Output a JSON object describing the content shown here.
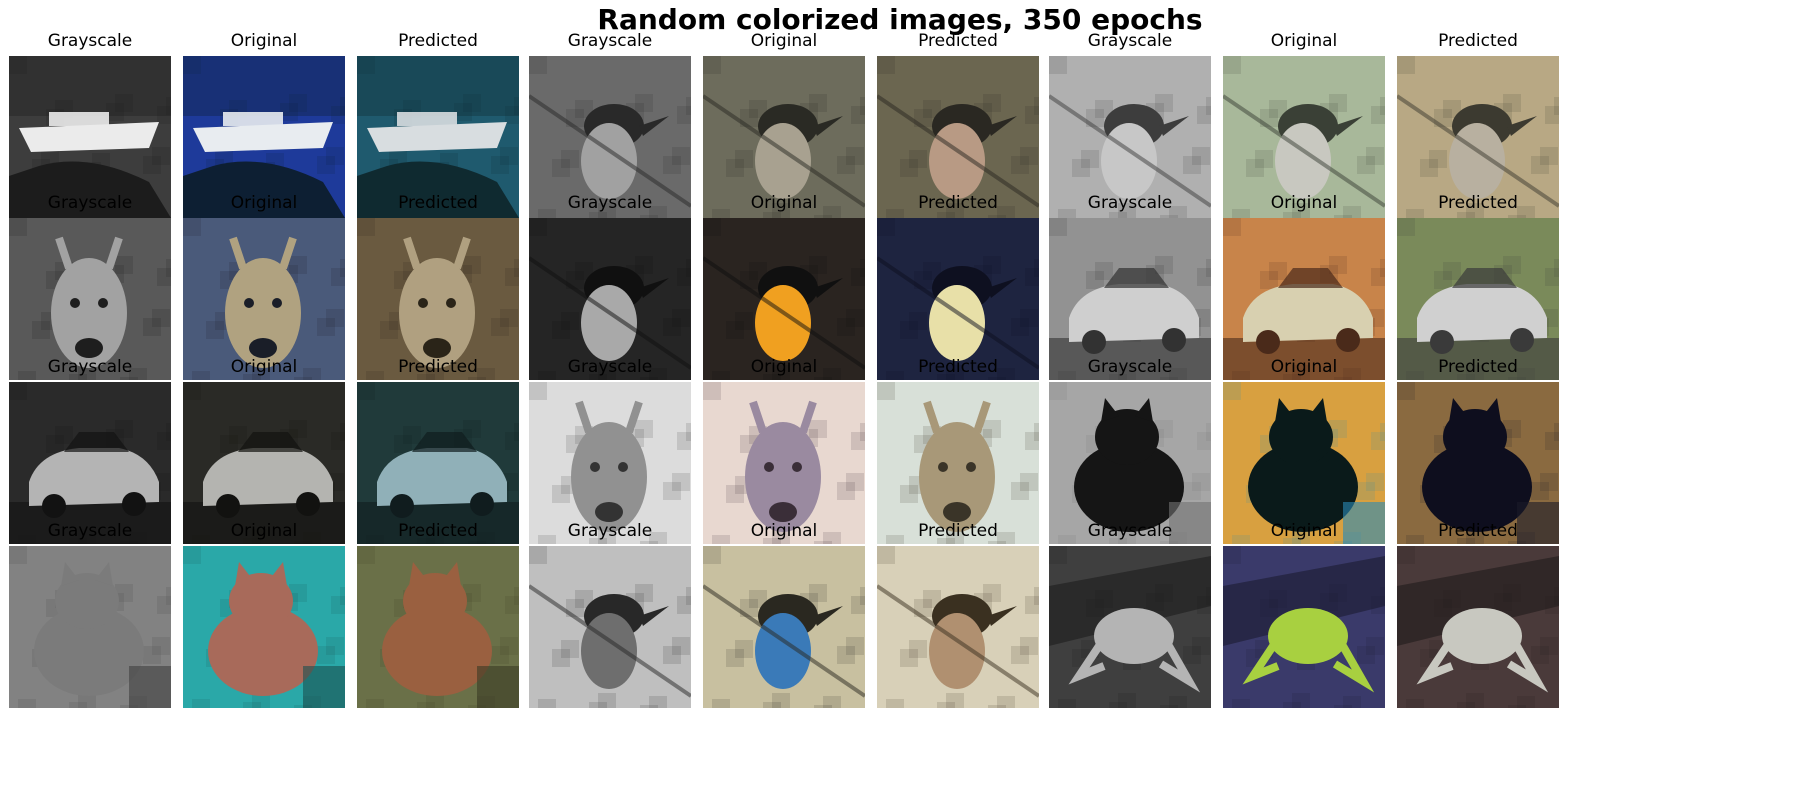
{
  "figure": {
    "title": "Random colorized images, 350 epochs"
  },
  "panel_labels": {
    "grayscale": "Grayscale",
    "original": "Original",
    "predicted": "Predicted"
  },
  "grid": {
    "rows": [
      {
        "samples": [
          {
            "subject": "boat",
            "original_colors": {
              "bg": "#1e3a9a",
              "main": "#e8ecf0",
              "dark": "#0d1f33"
            },
            "predicted_colors": {
              "bg": "#1f5a6e",
              "main": "#d8dde0",
              "dark": "#0f2a30"
            }
          },
          {
            "subject": "bird",
            "original_colors": {
              "bg": "#6d6c5c",
              "main": "#a8a190",
              "dark": "#2a2a24"
            },
            "predicted_colors": {
              "bg": "#6b6650",
              "main": "#b89a84",
              "dark": "#2a2822"
            }
          },
          {
            "subject": "bird",
            "original_colors": {
              "bg": "#a8b89a",
              "main": "#c8c8c0",
              "dark": "#3a4036"
            },
            "predicted_colors": {
              "bg": "#b8a884",
              "main": "#b8b0a0",
              "dark": "#3c3a30"
            }
          }
        ]
      },
      {
        "samples": [
          {
            "subject": "deer",
            "original_colors": {
              "bg": "#4a5a7a",
              "main": "#b0a280",
              "dark": "#1a1e28"
            },
            "predicted_colors": {
              "bg": "#6a5a40",
              "main": "#b0a080",
              "dark": "#2a2418"
            }
          },
          {
            "subject": "bird",
            "original_colors": {
              "bg": "#2a2420",
              "main": "#f0a020",
              "dark": "#101010"
            },
            "predicted_colors": {
              "bg": "#1e2440",
              "main": "#e8e0a8",
              "dark": "#0e1020"
            }
          },
          {
            "subject": "car",
            "original_colors": {
              "bg": "#c8844a",
              "main": "#d8d0b0",
              "dark": "#4a2a1a"
            },
            "predicted_colors": {
              "bg": "#7a8a5a",
              "main": "#d0d0d0",
              "dark": "#3a3a3a"
            }
          }
        ]
      },
      {
        "samples": [
          {
            "subject": "car",
            "original_colors": {
              "bg": "#2a2a26",
              "main": "#b4b4b0",
              "dark": "#121210"
            },
            "predicted_colors": {
              "bg": "#203a3a",
              "main": "#90b0b8",
              "dark": "#101c1e"
            }
          },
          {
            "subject": "deer",
            "original_colors": {
              "bg": "#e8d8d0",
              "main": "#9a8aa0",
              "dark": "#3a2e38"
            },
            "predicted_colors": {
              "bg": "#d8e0d8",
              "main": "#a89878",
              "dark": "#3a3428"
            }
          },
          {
            "subject": "cat",
            "original_colors": {
              "bg": "#d8a040",
              "main": "#0a1a1a",
              "dark": "#2a8ab8"
            },
            "predicted_colors": {
              "bg": "#8a6a40",
              "main": "#0e0e1e",
              "dark": "#1a1a28"
            }
          }
        ]
      },
      {
        "samples": [
          {
            "subject": "cat",
            "original_colors": {
              "bg": "#2aa8a8",
              "main": "#a86a5a",
              "dark": "#1a5050"
            },
            "predicted_colors": {
              "bg": "#6a7048",
              "main": "#9a6040",
              "dark": "#3a3a24"
            }
          },
          {
            "subject": "bird",
            "original_colors": {
              "bg": "#c8c0a0",
              "main": "#3a7ab8",
              "dark": "#2a2820"
            },
            "predicted_colors": {
              "bg": "#d8d0b8",
              "main": "#b09070",
              "dark": "#3a3020"
            }
          },
          {
            "subject": "frog",
            "original_colors": {
              "bg": "#3a3a6a",
              "main": "#a8d040",
              "dark": "#1a1a30"
            },
            "predicted_colors": {
              "bg": "#4a3a3a",
              "main": "#c8c8c0",
              "dark": "#201a1a"
            }
          }
        ]
      }
    ]
  }
}
